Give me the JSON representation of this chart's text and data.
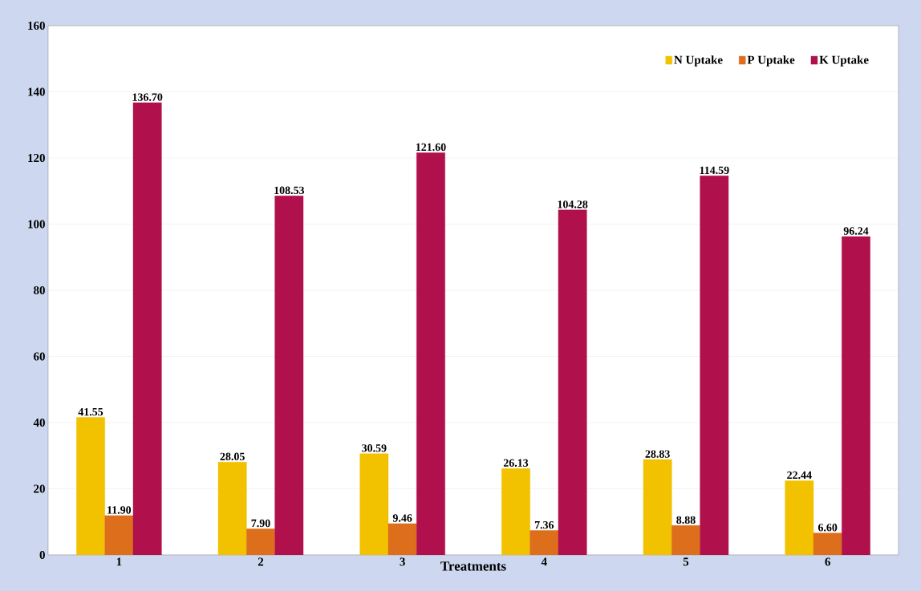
{
  "chart_data": {
    "type": "bar",
    "xlabel": "Treatments",
    "categories": [
      "1",
      "2",
      "3",
      "4",
      "5",
      "6"
    ],
    "series": [
      {
        "name": "N Uptake",
        "color": "#f2c200",
        "values": [
          41.55,
          28.05,
          30.59,
          26.13,
          28.83,
          22.44
        ],
        "value_labels": [
          "41.55",
          "28.05",
          "30.59",
          "26.13",
          "28.83",
          "22.44"
        ]
      },
      {
        "name": "P Uptake",
        "color": "#dd6e1c",
        "values": [
          11.9,
          7.9,
          9.46,
          7.36,
          8.88,
          6.6
        ],
        "value_labels": [
          "11.90",
          "7.90",
          "9.46",
          "7.36",
          "8.88",
          "6.60"
        ]
      },
      {
        "name": "K Uptake",
        "color": "#b0104c",
        "values": [
          136.7,
          108.53,
          121.6,
          104.28,
          114.59,
          96.24
        ],
        "value_labels": [
          "136.70",
          "108.53",
          "121.60",
          "104.28",
          "114.59",
          "96.24"
        ]
      }
    ],
    "ylim": [
      0,
      160
    ],
    "yticks": [
      0,
      20,
      40,
      60,
      80,
      100,
      120,
      140,
      160
    ],
    "grid": "y",
    "legend": "top right"
  }
}
